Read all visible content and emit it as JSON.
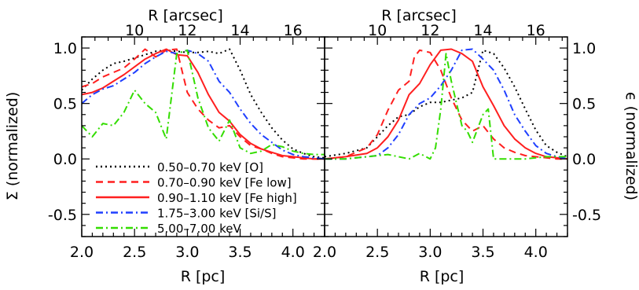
{
  "chart_data": [
    {
      "type": "line",
      "panel": "left",
      "xlabel": "R [pc]",
      "ylabel": "Σ (normalized)",
      "top_xlabel": "R [arcsec]",
      "xlim": [
        2.0,
        4.3
      ],
      "ylim": [
        -0.7,
        1.1
      ],
      "x_ticks": [
        "2.0",
        "2.5",
        "3.0",
        "3.5",
        "4.0"
      ],
      "y_ticks": [
        "-0.5",
        "0.0",
        "0.5",
        "1.0"
      ],
      "top_ticks": [
        "10",
        "12",
        "14",
        "16"
      ],
      "grid": false,
      "legend_position": "bottom-left",
      "series": [
        {
          "name": "0.50–0.70 keV [O]",
          "color": "#000000",
          "dash": "dotted",
          "x": [
            2.0,
            2.1,
            2.2,
            2.3,
            2.4,
            2.5,
            2.6,
            2.7,
            2.8,
            2.9,
            3.0,
            3.1,
            3.2,
            3.3,
            3.4,
            3.5,
            3.6,
            3.7,
            3.8,
            3.9,
            4.0,
            4.1,
            4.2,
            4.3
          ],
          "y": [
            0.62,
            0.72,
            0.8,
            0.86,
            0.88,
            0.91,
            0.94,
            0.97,
            0.98,
            0.97,
            0.96,
            0.96,
            0.97,
            0.95,
            0.99,
            0.8,
            0.58,
            0.42,
            0.28,
            0.17,
            0.09,
            0.05,
            0.02,
            0.01
          ]
        },
        {
          "name": "0.70–0.90 keV [Fe low]",
          "color": "#ff1f1f",
          "dash": "dashed",
          "x": [
            2.0,
            2.1,
            2.2,
            2.3,
            2.4,
            2.5,
            2.6,
            2.7,
            2.8,
            2.9,
            3.0,
            3.1,
            3.2,
            3.3,
            3.4,
            3.5,
            3.6,
            3.7,
            3.8,
            3.9,
            4.0,
            4.1,
            4.2,
            4.3
          ],
          "y": [
            0.65,
            0.68,
            0.74,
            0.78,
            0.82,
            0.9,
            0.99,
            0.92,
            0.98,
            0.99,
            0.6,
            0.45,
            0.35,
            0.28,
            0.3,
            0.2,
            0.12,
            0.09,
            0.05,
            0.02,
            0.01,
            0.0,
            0.0,
            0.0
          ]
        },
        {
          "name": "0.90–1.10 keV [Fe high]",
          "color": "#ff1f1f",
          "dash": "solid",
          "x": [
            2.0,
            2.1,
            2.2,
            2.3,
            2.4,
            2.5,
            2.6,
            2.7,
            2.8,
            2.9,
            3.0,
            3.1,
            3.2,
            3.3,
            3.4,
            3.5,
            3.6,
            3.7,
            3.8,
            3.9,
            4.0,
            4.1,
            4.2,
            4.3
          ],
          "y": [
            0.58,
            0.6,
            0.64,
            0.7,
            0.76,
            0.83,
            0.9,
            0.95,
            0.99,
            0.94,
            0.93,
            0.78,
            0.58,
            0.42,
            0.34,
            0.22,
            0.14,
            0.09,
            0.06,
            0.03,
            0.02,
            0.01,
            0.0,
            0.0
          ]
        },
        {
          "name": "1.75–3.00 keV [Si/S]",
          "color": "#1f3fff",
          "dash": "dashdot",
          "x": [
            2.0,
            2.1,
            2.2,
            2.3,
            2.4,
            2.5,
            2.6,
            2.7,
            2.8,
            2.9,
            3.0,
            3.1,
            3.2,
            3.3,
            3.4,
            3.5,
            3.6,
            3.7,
            3.8,
            3.9,
            4.0,
            4.1,
            4.2,
            4.3
          ],
          "y": [
            0.5,
            0.58,
            0.63,
            0.66,
            0.72,
            0.78,
            0.86,
            0.92,
            0.97,
            0.95,
            0.98,
            0.95,
            0.88,
            0.7,
            0.6,
            0.45,
            0.32,
            0.22,
            0.15,
            0.08,
            0.04,
            0.02,
            0.01,
            0.0
          ]
        },
        {
          "name": "5.00–7.00 keV",
          "color": "#33dd00",
          "dash": "dashdot",
          "x": [
            2.0,
            2.1,
            2.2,
            2.3,
            2.4,
            2.5,
            2.6,
            2.7,
            2.8,
            2.9,
            3.0,
            3.1,
            3.2,
            3.3,
            3.4,
            3.5,
            3.6,
            3.7,
            3.8,
            3.9,
            4.0,
            4.1,
            4.2,
            4.3
          ],
          "y": [
            0.3,
            0.2,
            0.32,
            0.3,
            0.42,
            0.62,
            0.5,
            0.42,
            0.18,
            0.95,
            0.98,
            0.55,
            0.28,
            0.16,
            0.35,
            0.1,
            0.05,
            0.07,
            0.13,
            0.11,
            0.07,
            0.05,
            0.04,
            0.04
          ]
        }
      ]
    },
    {
      "type": "line",
      "panel": "right",
      "xlabel": "R [pc]",
      "ylabel": "ϵ (normalized)",
      "top_xlabel": "R [arcsec]",
      "xlim": [
        2.0,
        4.3
      ],
      "ylim": [
        -0.7,
        1.1
      ],
      "x_ticks": [
        "2.0",
        "2.5",
        "3.0",
        "3.5",
        "4.0"
      ],
      "y_ticks": [
        "-0.5",
        "0.0",
        "0.5",
        "1.0"
      ],
      "top_ticks": [
        "10",
        "12",
        "14",
        "16"
      ],
      "grid": false,
      "series": [
        {
          "name": "0.50–0.70 keV [O]",
          "color": "#000000",
          "dash": "dotted",
          "x": [
            2.0,
            2.2,
            2.4,
            2.6,
            2.7,
            2.8,
            2.9,
            3.0,
            3.1,
            3.2,
            3.3,
            3.4,
            3.5,
            3.6,
            3.7,
            3.8,
            3.9,
            4.0,
            4.1,
            4.2,
            4.3
          ],
          "y": [
            0.02,
            0.05,
            0.1,
            0.3,
            0.38,
            0.4,
            0.47,
            0.51,
            0.51,
            0.53,
            0.55,
            0.6,
            0.98,
            0.95,
            0.82,
            0.65,
            0.45,
            0.26,
            0.12,
            0.06,
            0.02
          ]
        },
        {
          "name": "0.70–0.90 keV [Fe low]",
          "color": "#ff1f1f",
          "dash": "dashed",
          "x": [
            2.0,
            2.2,
            2.4,
            2.5,
            2.6,
            2.7,
            2.8,
            2.85,
            2.9,
            3.0,
            3.1,
            3.2,
            3.3,
            3.4,
            3.5,
            3.6,
            3.7,
            3.8,
            3.9,
            4.0,
            4.2,
            4.3
          ],
          "y": [
            0.0,
            0.02,
            0.1,
            0.22,
            0.44,
            0.62,
            0.7,
            0.92,
            0.98,
            0.96,
            0.8,
            0.55,
            0.35,
            0.25,
            0.3,
            0.18,
            0.1,
            0.06,
            0.03,
            0.02,
            0.0,
            0.0
          ]
        },
        {
          "name": "0.90–1.10 keV [Fe high]",
          "color": "#ff1f1f",
          "dash": "solid",
          "x": [
            2.0,
            2.2,
            2.4,
            2.5,
            2.6,
            2.7,
            2.8,
            2.9,
            3.0,
            3.1,
            3.2,
            3.3,
            3.4,
            3.5,
            3.6,
            3.7,
            3.8,
            3.9,
            4.0,
            4.1,
            4.2,
            4.3
          ],
          "y": [
            0.0,
            0.02,
            0.05,
            0.1,
            0.2,
            0.35,
            0.58,
            0.68,
            0.85,
            0.98,
            0.99,
            0.95,
            0.88,
            0.65,
            0.48,
            0.3,
            0.18,
            0.1,
            0.05,
            0.02,
            0.01,
            0.0
          ]
        },
        {
          "name": "1.75–3.00 keV [Si/S]",
          "color": "#1f3fff",
          "dash": "dashdot",
          "x": [
            2.0,
            2.2,
            2.4,
            2.5,
            2.6,
            2.7,
            2.8,
            2.9,
            3.0,
            3.1,
            3.2,
            3.3,
            3.4,
            3.5,
            3.6,
            3.7,
            3.8,
            3.9,
            4.0,
            4.1,
            4.2,
            4.3
          ],
          "y": [
            0.0,
            0.0,
            0.02,
            0.03,
            0.1,
            0.22,
            0.4,
            0.5,
            0.55,
            0.66,
            0.8,
            0.98,
            0.99,
            0.9,
            0.8,
            0.62,
            0.4,
            0.25,
            0.12,
            0.05,
            0.02,
            0.0
          ]
        },
        {
          "name": "5.00–7.00 keV",
          "color": "#33dd00",
          "dash": "dashdot",
          "x": [
            2.0,
            2.2,
            2.4,
            2.6,
            2.7,
            2.8,
            2.9,
            3.0,
            3.05,
            3.1,
            3.15,
            3.2,
            3.25,
            3.3,
            3.35,
            3.4,
            3.5,
            3.55,
            3.6,
            3.7,
            3.9,
            4.1,
            4.3
          ],
          "y": [
            0.0,
            0.0,
            0.02,
            0.04,
            0.02,
            0.0,
            0.05,
            0.0,
            0.1,
            0.45,
            0.95,
            0.7,
            0.5,
            0.3,
            0.25,
            0.15,
            0.4,
            0.45,
            0.0,
            0.0,
            0.0,
            0.02,
            0.02
          ]
        }
      ]
    }
  ]
}
